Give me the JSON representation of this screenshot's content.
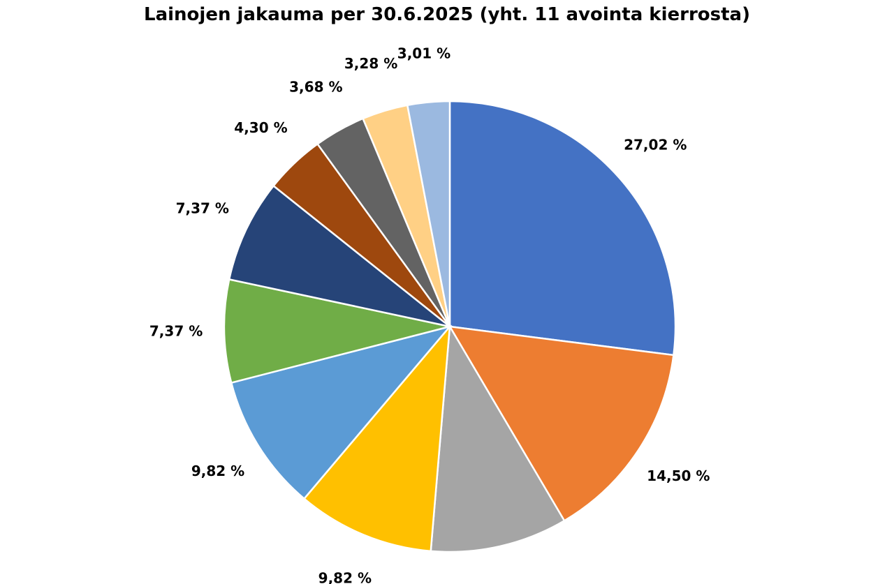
{
  "chart_data": {
    "type": "pie",
    "title": "Lainojen jakauma per 30.6.2025 (yht. 11 avointa kierrosta)",
    "start_angle_deg": 0,
    "direction": "clockwise",
    "legend": "none",
    "slices": [
      {
        "value": 27.02,
        "label": "27,02 %",
        "color": "#4472C4"
      },
      {
        "value": 14.5,
        "label": "14,50 %",
        "color": "#ED7D31"
      },
      {
        "value": 9.82,
        "label": "9,82 %",
        "color": "#A5A5A5"
      },
      {
        "value": 9.82,
        "label": "9,82 %",
        "color": "#FFC000"
      },
      {
        "value": 9.82,
        "label": "9,82 %",
        "color": "#5B9BD5"
      },
      {
        "value": 7.37,
        "label": "7,37 %",
        "color": "#70AD47"
      },
      {
        "value": 7.37,
        "label": "7,37 %",
        "color": "#264478"
      },
      {
        "value": 4.3,
        "label": "4,30 %",
        "color": "#9E480E"
      },
      {
        "value": 3.68,
        "label": "3,68 %",
        "color": "#636363"
      },
      {
        "value": 3.28,
        "label": "3,28 %",
        "color": "#FFD085"
      },
      {
        "value": 3.01,
        "label": "3,01 %",
        "color": "#9BB9E0"
      }
    ]
  }
}
